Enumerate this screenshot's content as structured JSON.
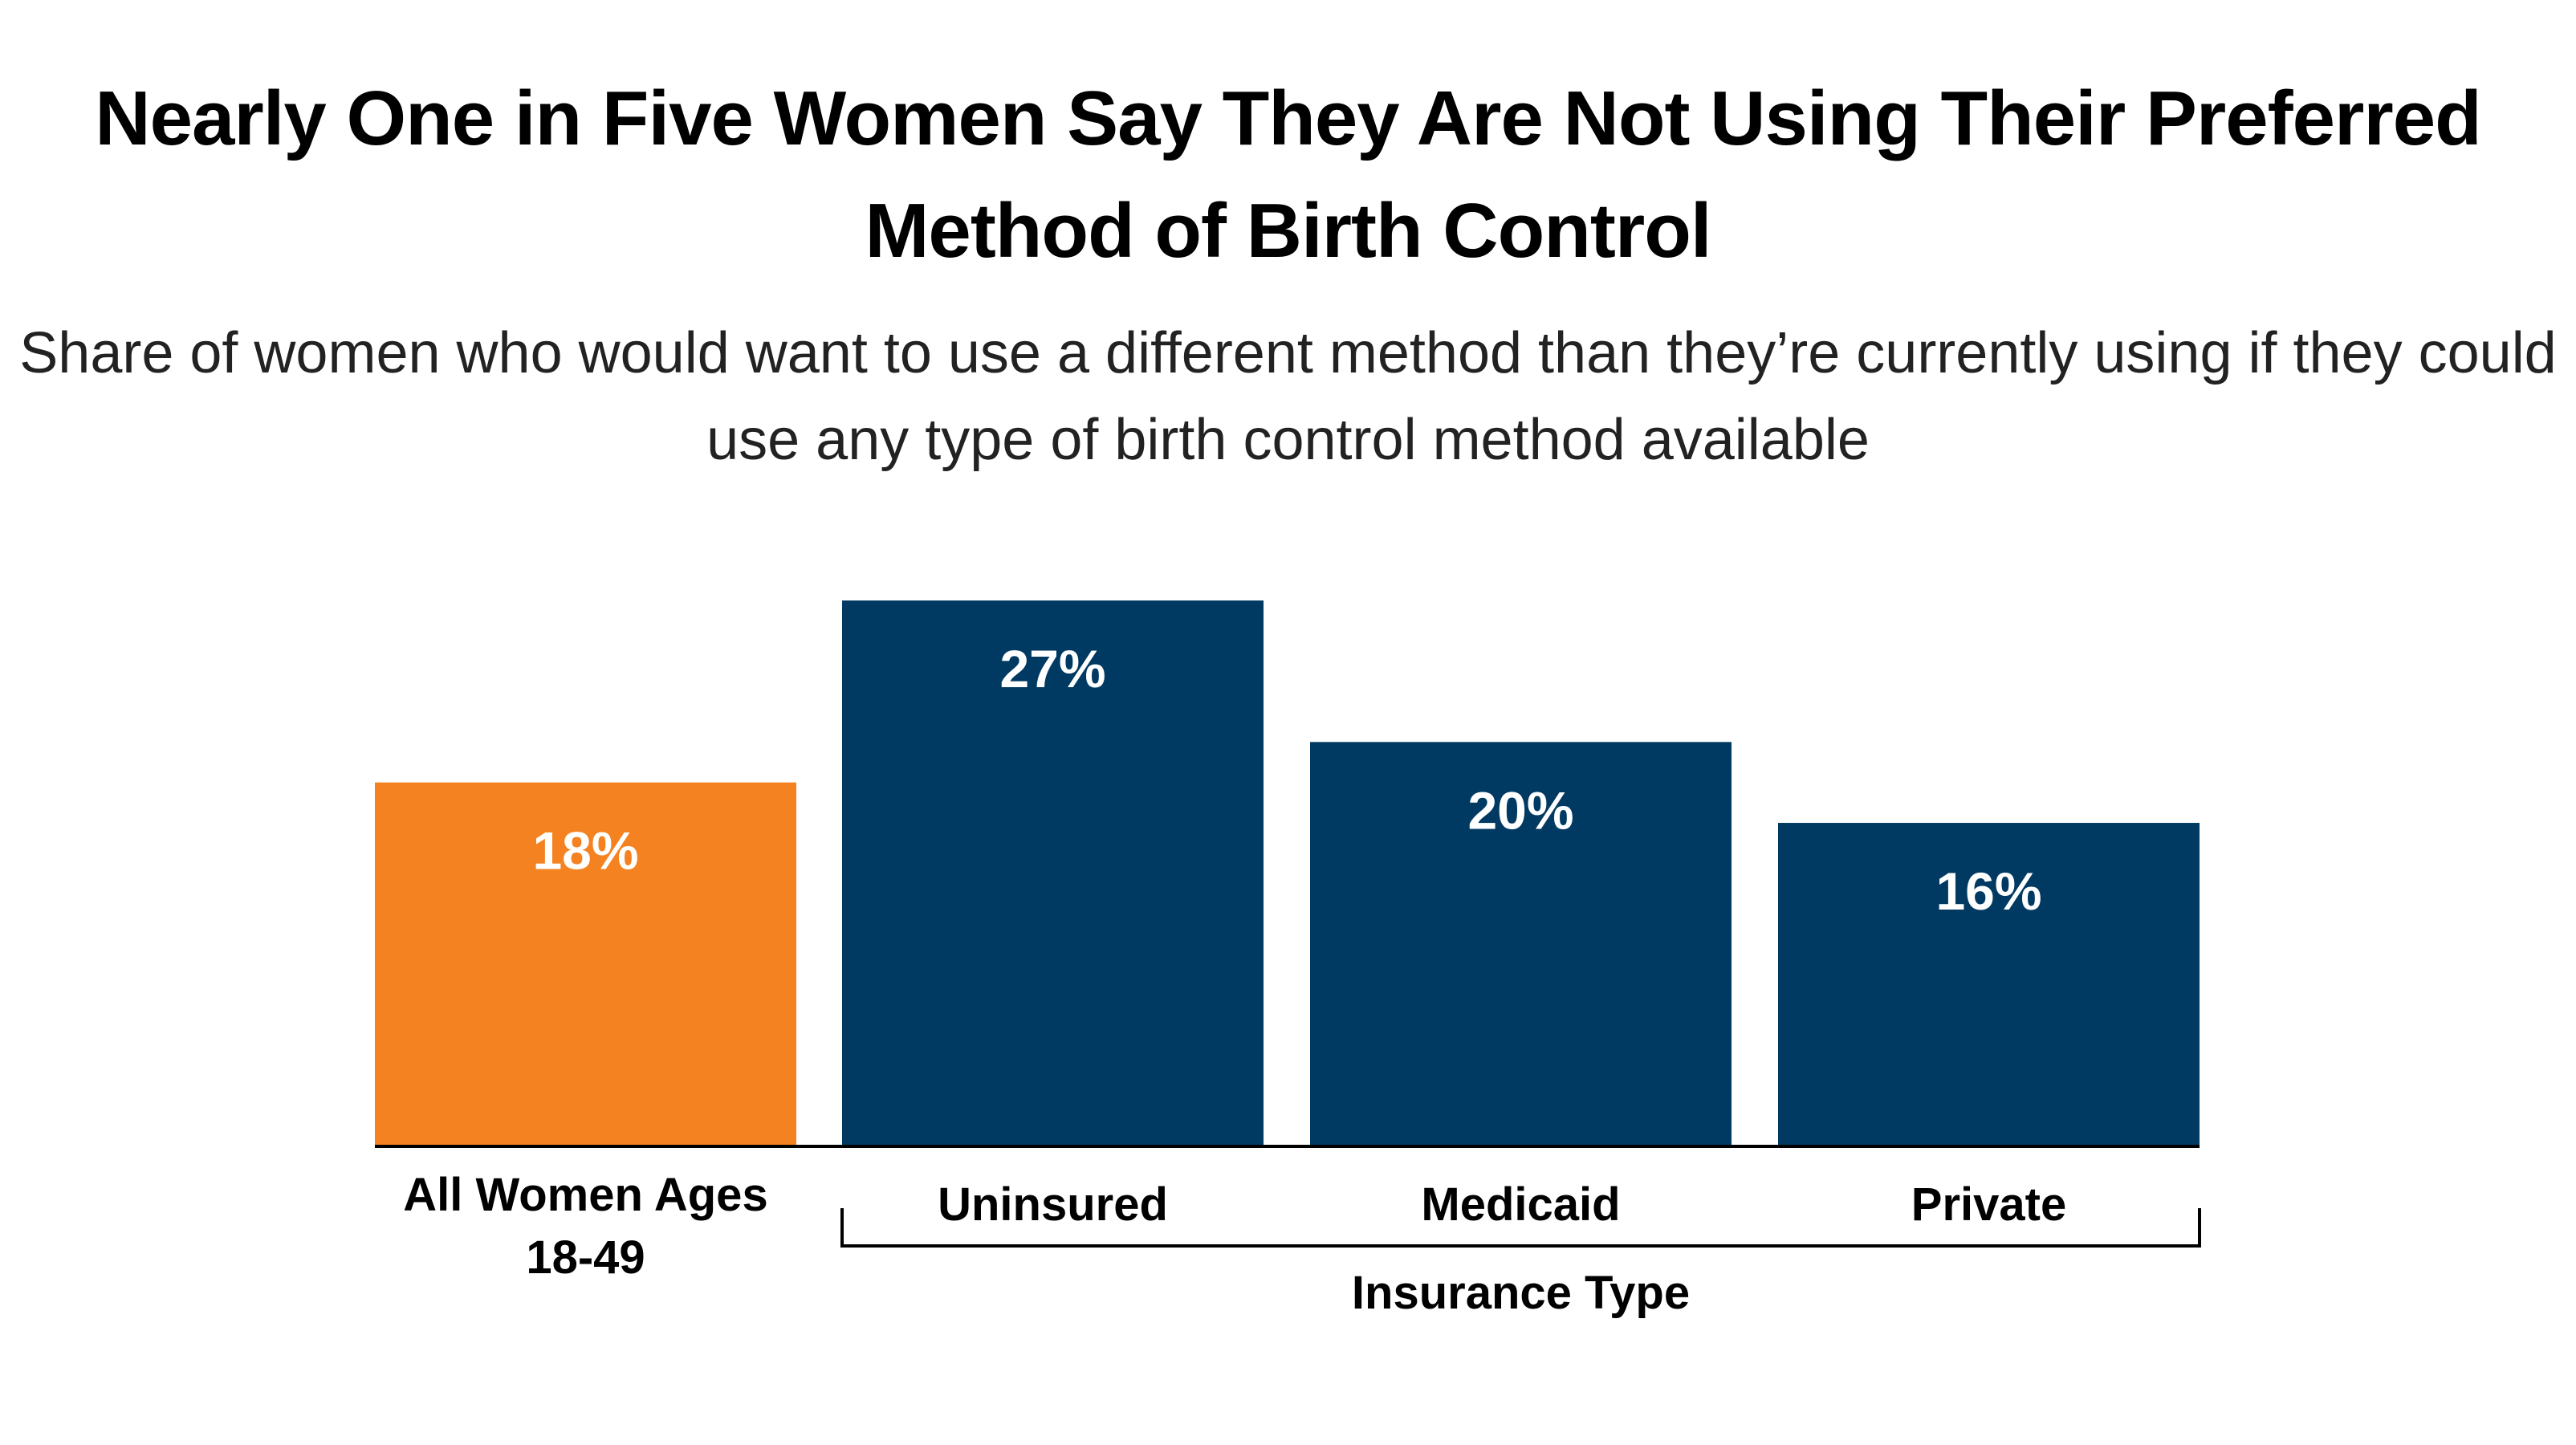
{
  "chart_data": {
    "type": "bar",
    "title": "Nearly One in Five Women Say They Are Not Using Their Preferred Method of Birth Control",
    "subtitle": "Share of women who would want to use a different method than they’re currently using if they could use any type of birth control method available",
    "categories": [
      "All Women Ages 18-49",
      "Uninsured",
      "Medicaid",
      "Private"
    ],
    "category_lines": [
      [
        "All Women Ages",
        "18-49"
      ],
      [
        "Uninsured"
      ],
      [
        "Medicaid"
      ],
      [
        "Private"
      ]
    ],
    "values": [
      18,
      27,
      20,
      16
    ],
    "data_labels": [
      "18%",
      "27%",
      "20%",
      "16%"
    ],
    "bar_colors": [
      "#F58220",
      "#003A63",
      "#003A63",
      "#003A63"
    ],
    "group_label": "Insurance Type",
    "ylim": [
      0,
      27
    ],
    "grid": false,
    "legend": "none",
    "xlabel": "",
    "ylabel": ""
  }
}
